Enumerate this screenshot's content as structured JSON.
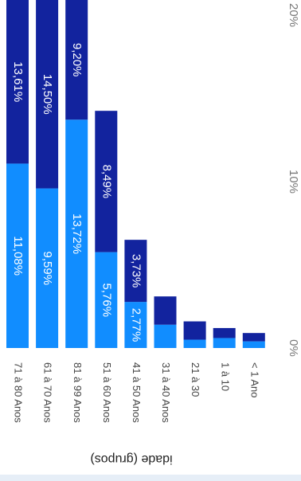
{
  "chart_data": {
    "type": "stacked-bar",
    "x_label": "idade (grupos)",
    "categories": [
      "71 à 80 Anos",
      "61 à 70 Anos",
      "81 à 99 Anos",
      "51 à 60 Anos",
      "41 à 50 Anos",
      "31 à 40 Anos",
      "21 à 30",
      "1 à 10",
      "< 1 Ano"
    ],
    "series": [
      {
        "color": "#118dff",
        "values": [
          11.08,
          9.59,
          13.72,
          5.76,
          2.77,
          1.4,
          0.5,
          0.6,
          0.4
        ],
        "value_labels": [
          "11,08%",
          "9,59%",
          "13,72%",
          "5,76%",
          "2,77%",
          null,
          null,
          null,
          null
        ]
      },
      {
        "color": "#12239e",
        "values": [
          13.61,
          14.5,
          9.2,
          8.49,
          3.73,
          1.7,
          1.1,
          0.6,
          0.5
        ],
        "value_labels": [
          "13,61%",
          "14,50%",
          "9,20%",
          "8,49%",
          "3,73%",
          null,
          null,
          null,
          null
        ]
      }
    ],
    "ylim": [
      0,
      21
    ],
    "yticks": [
      {
        "value": 0,
        "label": "0%"
      },
      {
        "value": 10,
        "label": "10%"
      },
      {
        "value": 20,
        "label": "20%"
      }
    ]
  }
}
